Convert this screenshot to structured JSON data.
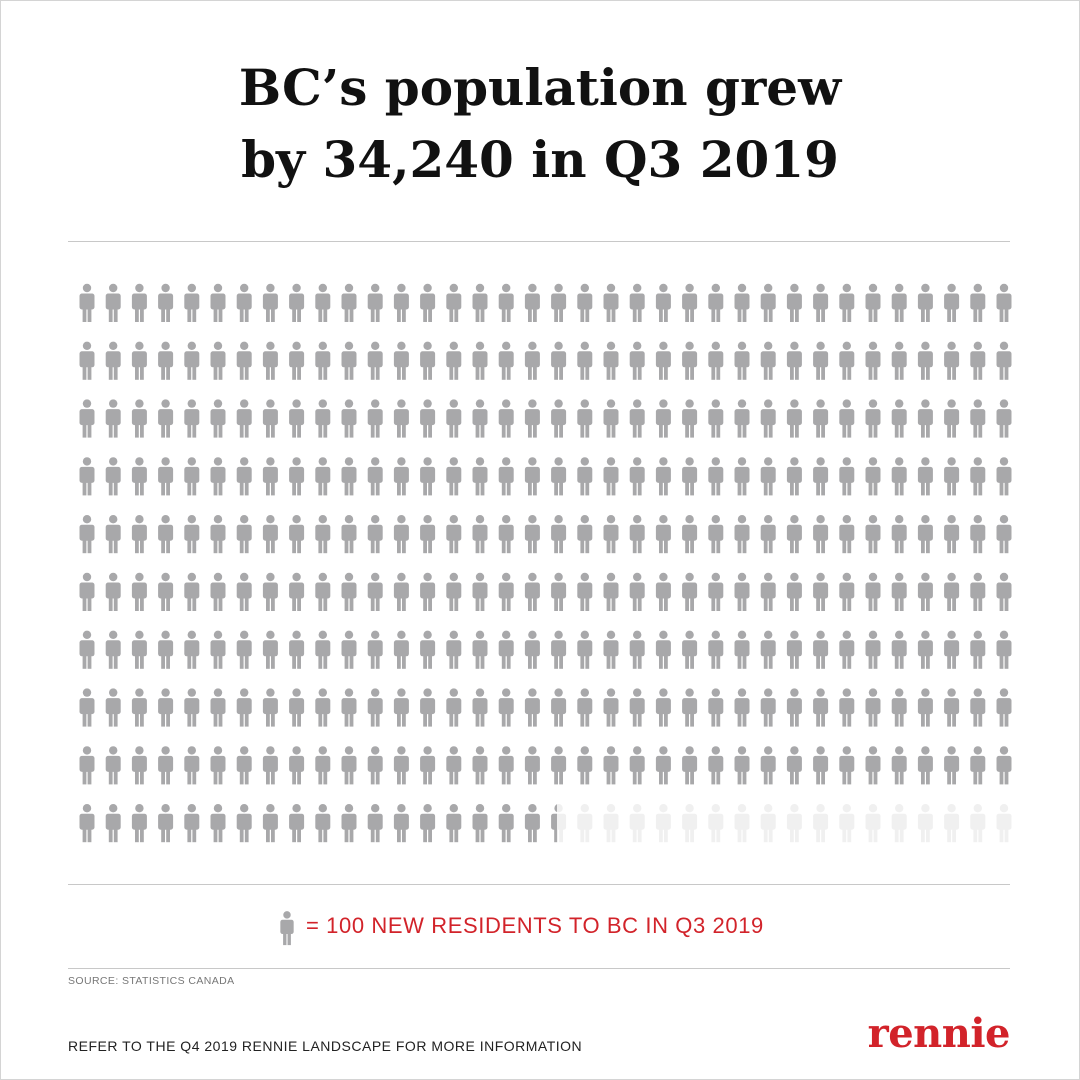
{
  "title": {
    "line1": "BC’s population grew",
    "line2": "by 34,240 in Q3 2019"
  },
  "chart_data": {
    "type": "pictogram",
    "total": 34240,
    "unit_value": 100,
    "icons_full": 342,
    "last_icon_fraction": 0.4,
    "grid": {
      "rows": 10,
      "columns": 36
    },
    "icon": "person-icon",
    "colors": {
      "filled": "#a8a8aa",
      "empty": "#f0f0f0"
    }
  },
  "legend": {
    "icon": "person-icon",
    "text": "= 100 NEW RESIDENTS TO BC IN Q3 2019"
  },
  "source": "SOURCE: STATISTICS CANADA",
  "footer": "REFER TO THE Q4 2019 RENNIE LANDSCAPE FOR MORE INFORMATION",
  "brand": "rennie",
  "colors": {
    "accent": "#d2232a",
    "text": "#111111",
    "rule": "#c8c8c8"
  }
}
